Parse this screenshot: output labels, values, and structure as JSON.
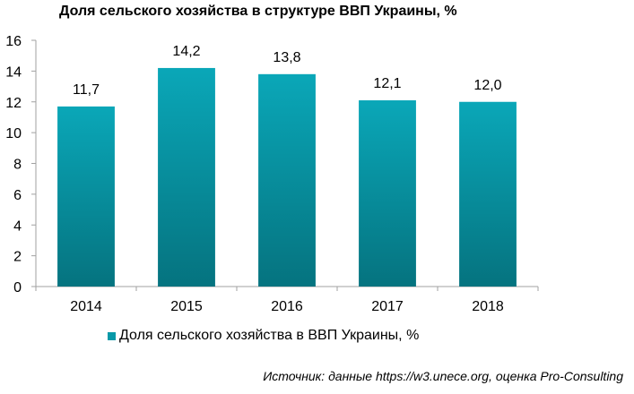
{
  "title": "Доля сельского хозяйства в структуре ВВП Украины, %",
  "legend_label": "Доля сельского хозяйства в ВВП Украины, %",
  "source": "Источник: данные https://w3.unece.org, оценка Pro-Consulting",
  "colors": {
    "bar_top": "#0aa7b8",
    "bar_bottom": "#05737f",
    "legend_swatch": "#0899a8",
    "axis": "#a0a0a0"
  },
  "chart_data": {
    "type": "bar",
    "categories": [
      "2014",
      "2015",
      "2016",
      "2017",
      "2018"
    ],
    "values": [
      11.7,
      14.2,
      13.8,
      12.1,
      12.0
    ],
    "value_labels": [
      "11,7",
      "14,2",
      "13,8",
      "12,1",
      "12,0"
    ],
    "y_ticks": [
      "0",
      "2",
      "4",
      "6",
      "8",
      "10",
      "12",
      "14",
      "16"
    ],
    "ylim": [
      0,
      16
    ],
    "grid": false,
    "legend_position": "bottom",
    "series": [
      {
        "name": "Доля сельского хозяйства в ВВП Украины, %",
        "values": [
          11.7,
          14.2,
          13.8,
          12.1,
          12.0
        ]
      }
    ]
  }
}
